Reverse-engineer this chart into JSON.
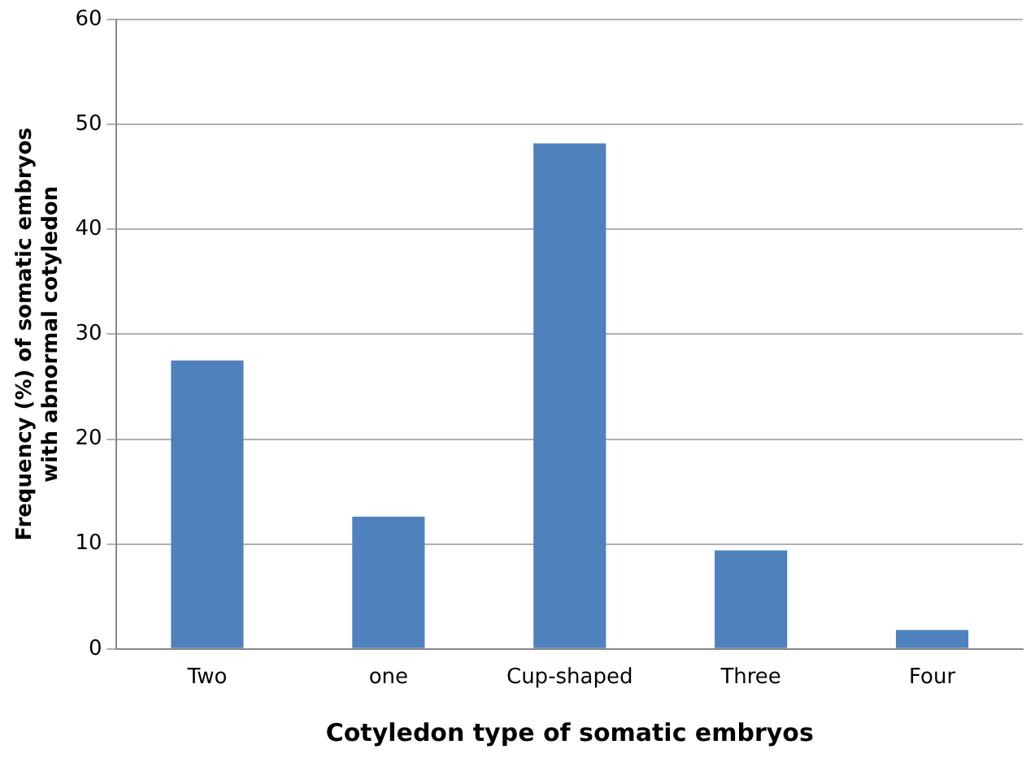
{
  "chart_data": {
    "type": "bar",
    "xlabel": "Cotyledon type of somatic embryos",
    "ylabel": "Frequency (%) of somatic embryos with abnormal cotyledon",
    "categories": [
      "Two",
      "one",
      "Cup-shaped",
      "Three",
      "Four"
    ],
    "values": [
      27.5,
      12.6,
      48.2,
      9.4,
      1.8
    ],
    "color": "#4f81bd",
    "ylim": [
      0,
      60
    ],
    "yticks": [
      0,
      10,
      20,
      30,
      40,
      50,
      60
    ],
    "grid": "y",
    "legend": false
  }
}
